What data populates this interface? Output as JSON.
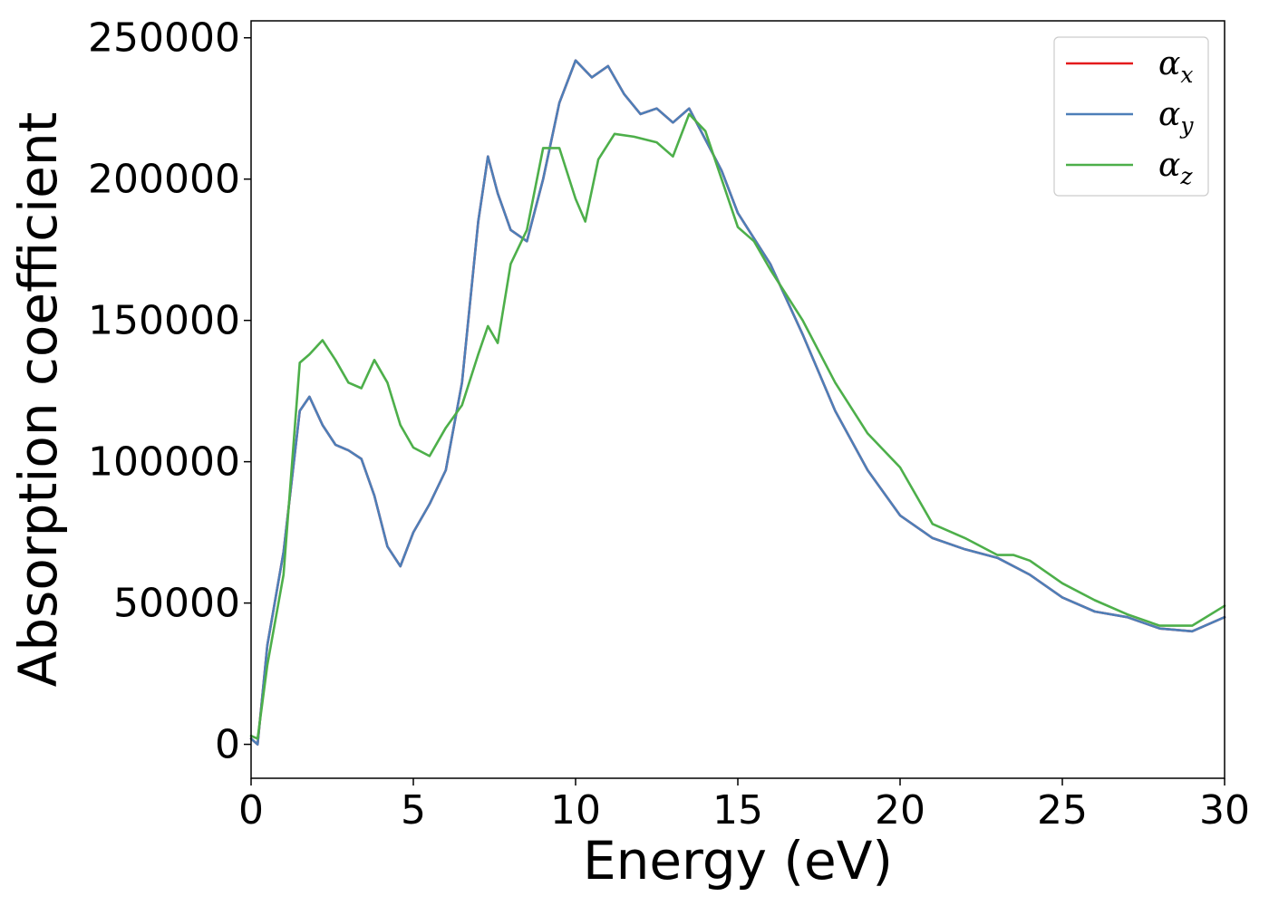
{
  "chart_data": {
    "type": "line",
    "xlabel": "Energy (eV)",
    "ylabel": "Absorption coefficient",
    "xlim": [
      0,
      30
    ],
    "ylim": [
      -12000,
      256000
    ],
    "xticks": [
      0,
      5,
      10,
      15,
      20,
      25,
      30
    ],
    "yticks": [
      0,
      50000,
      100000,
      150000,
      200000,
      250000
    ],
    "xtick_labels": [
      "0",
      "5",
      "10",
      "15",
      "20",
      "25",
      "30"
    ],
    "ytick_labels": [
      "0",
      "50000",
      "100000",
      "150000",
      "200000",
      "250000"
    ],
    "grid": false,
    "legend_position": "top-right",
    "series": [
      {
        "name": "α",
        "subscript": "x",
        "color": "#e41a1c",
        "x": [
          0,
          0.2,
          0.5,
          1.0,
          1.5,
          1.8,
          2.2,
          2.6,
          3.0,
          3.4,
          3.8,
          4.2,
          4.6,
          5.0,
          5.5,
          6.0,
          6.5,
          7.0,
          7.3,
          7.6,
          8.0,
          8.5,
          9.0,
          9.5,
          10.0,
          10.5,
          11.0,
          11.5,
          12.0,
          12.5,
          13.0,
          13.5,
          14.0,
          14.5,
          15.0,
          16.0,
          17.0,
          18.0,
          19.0,
          20.0,
          21.0,
          22.0,
          23.0,
          24.0,
          25.0,
          26.0,
          27.0,
          28.0,
          29.0,
          30.0
        ],
        "y": [
          2000,
          0,
          35000,
          68000,
          118000,
          123000,
          113000,
          106000,
          104000,
          101000,
          88000,
          70000,
          63000,
          75000,
          85000,
          97000,
          128000,
          185000,
          208000,
          195000,
          182000,
          178000,
          200000,
          227000,
          242000,
          236000,
          240000,
          230000,
          223000,
          225000,
          220000,
          225000,
          214000,
          203000,
          188000,
          170000,
          145000,
          118000,
          97000,
          81000,
          73000,
          69000,
          66000,
          60000,
          52000,
          47000,
          45000,
          41000,
          40000,
          45000
        ]
      },
      {
        "name": "α",
        "subscript": "y",
        "color": "#4d7fb8",
        "x": [
          0,
          0.2,
          0.5,
          1.0,
          1.5,
          1.8,
          2.2,
          2.6,
          3.0,
          3.4,
          3.8,
          4.2,
          4.6,
          5.0,
          5.5,
          6.0,
          6.5,
          7.0,
          7.3,
          7.6,
          8.0,
          8.5,
          9.0,
          9.5,
          10.0,
          10.5,
          11.0,
          11.5,
          12.0,
          12.5,
          13.0,
          13.5,
          14.0,
          14.5,
          15.0,
          16.0,
          17.0,
          18.0,
          19.0,
          20.0,
          21.0,
          22.0,
          23.0,
          24.0,
          25.0,
          26.0,
          27.0,
          28.0,
          29.0,
          30.0
        ],
        "y": [
          2000,
          0,
          35000,
          68000,
          118000,
          123000,
          113000,
          106000,
          104000,
          101000,
          88000,
          70000,
          63000,
          75000,
          85000,
          97000,
          128000,
          185000,
          208000,
          195000,
          182000,
          178000,
          200000,
          227000,
          242000,
          236000,
          240000,
          230000,
          223000,
          225000,
          220000,
          225000,
          214000,
          203000,
          188000,
          170000,
          145000,
          118000,
          97000,
          81000,
          73000,
          69000,
          66000,
          60000,
          52000,
          47000,
          45000,
          41000,
          40000,
          45000
        ]
      },
      {
        "name": "α",
        "subscript": "z",
        "color": "#4daf4a",
        "x": [
          0,
          0.2,
          0.5,
          1.0,
          1.5,
          1.8,
          2.2,
          2.6,
          3.0,
          3.4,
          3.8,
          4.2,
          4.6,
          5.0,
          5.5,
          6.0,
          6.5,
          7.0,
          7.3,
          7.6,
          8.0,
          8.5,
          9.0,
          9.5,
          10.0,
          10.3,
          10.7,
          11.2,
          11.8,
          12.5,
          13.0,
          13.5,
          14.0,
          14.5,
          15.0,
          15.5,
          16.0,
          17.0,
          18.0,
          19.0,
          20.0,
          21.0,
          22.0,
          23.0,
          23.5,
          24.0,
          25.0,
          26.0,
          27.0,
          28.0,
          29.0,
          30.0
        ],
        "y": [
          3000,
          2000,
          28000,
          60000,
          135000,
          138000,
          143000,
          136000,
          128000,
          126000,
          136000,
          128000,
          113000,
          105000,
          102000,
          112000,
          120000,
          138000,
          148000,
          142000,
          170000,
          182000,
          211000,
          211000,
          193000,
          185000,
          207000,
          216000,
          215000,
          213000,
          208000,
          223000,
          217000,
          200000,
          183000,
          178000,
          168000,
          150000,
          128000,
          110000,
          98000,
          78000,
          73000,
          67000,
          67000,
          65000,
          57000,
          51000,
          46000,
          42000,
          42000,
          49000
        ]
      }
    ]
  }
}
